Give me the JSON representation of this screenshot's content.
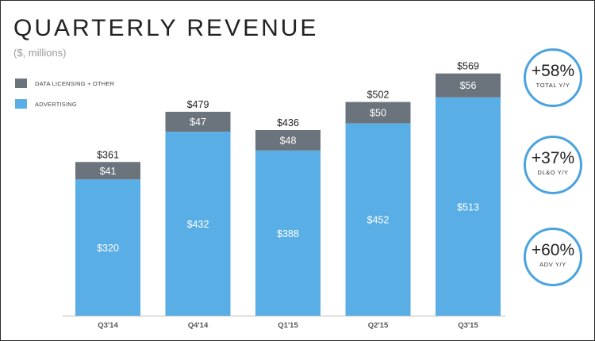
{
  "header": {
    "title": "QUARTERLY REVENUE",
    "subtitle": "($, millions)"
  },
  "colors": {
    "advertising": "#5aaee6",
    "data_licensing": "#6b737c",
    "kpi_ring": "#4aa3e0"
  },
  "chart_data": {
    "type": "bar",
    "stacked": true,
    "categories": [
      "Q3'14",
      "Q4'14",
      "Q1'15",
      "Q2'15",
      "Q3'15"
    ],
    "series": [
      {
        "name": "ADVERTISING",
        "values": [
          320,
          432,
          388,
          452,
          513
        ],
        "value_labels": [
          "$320",
          "$432",
          "$388",
          "$452",
          "$513"
        ]
      },
      {
        "name": "DATA LICENSING + OTHER",
        "values": [
          41,
          47,
          48,
          50,
          56
        ],
        "value_labels": [
          "$41",
          "$47",
          "$48",
          "$50",
          "$56"
        ]
      }
    ],
    "totals": [
      361,
      479,
      436,
      502,
      569
    ],
    "total_labels": [
      "$361",
      "$479",
      "$436",
      "$502",
      "$569"
    ],
    "ylim": [
      0,
      600
    ],
    "grid": false,
    "legend": "top-left"
  },
  "legend": {
    "items": [
      {
        "label": "DATA LICENSING + OTHER",
        "color": "#6b737c"
      },
      {
        "label": "ADVERTISING",
        "color": "#5aaee6"
      }
    ]
  },
  "kpis": [
    {
      "value": "+58%",
      "label": "TOTAL Y/Y"
    },
    {
      "value": "+37%",
      "label": "DL&O Y/Y"
    },
    {
      "value": "+60%",
      "label": "ADV Y/Y"
    }
  ]
}
